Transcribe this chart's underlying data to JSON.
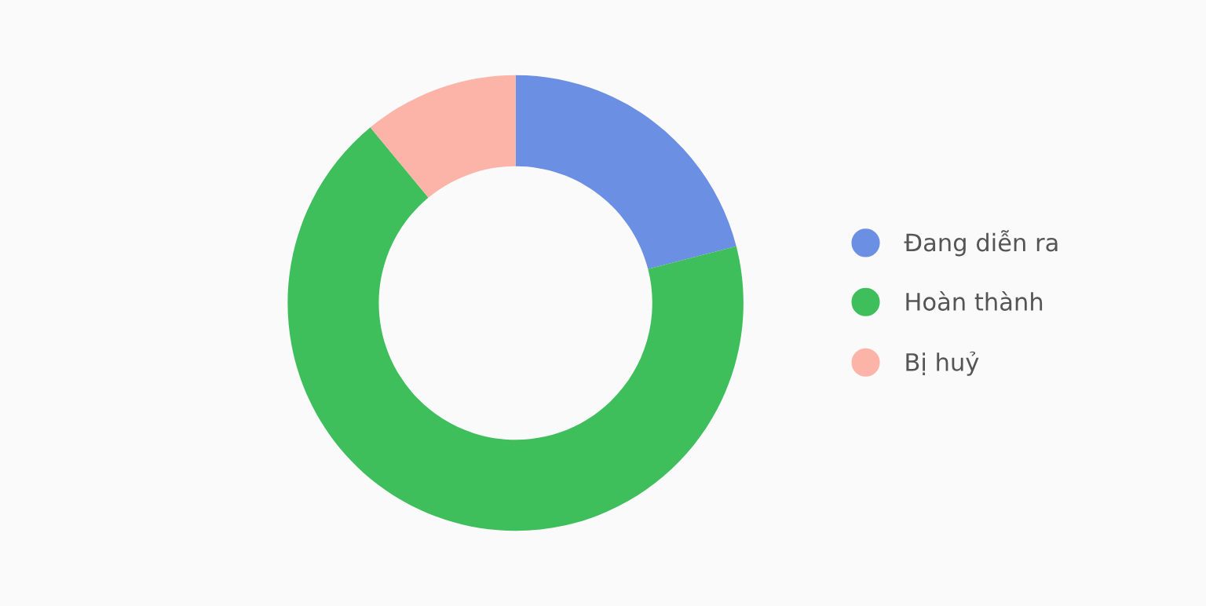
{
  "chart_data": {
    "type": "donut",
    "categories": [
      "Đang diễn ra",
      "Hoàn thành",
      "Bị huỷ"
    ],
    "values": [
      21,
      68,
      11
    ],
    "colors": [
      "#6b8fe3",
      "#3fbe5c",
      "#fdb4a8"
    ],
    "legend": "right"
  }
}
